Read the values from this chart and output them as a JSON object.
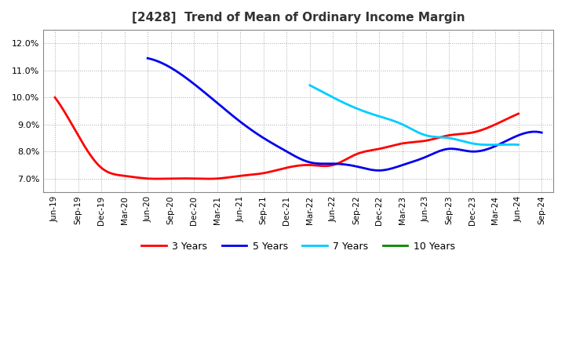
{
  "title": "[2428]  Trend of Mean of Ordinary Income Margin",
  "background_color": "#ffffff",
  "grid_color": "#aaaaaa",
  "x_labels": [
    "Jun-19",
    "Sep-19",
    "Dec-19",
    "Mar-20",
    "Jun-20",
    "Sep-20",
    "Dec-20",
    "Mar-21",
    "Jun-21",
    "Sep-21",
    "Dec-21",
    "Mar-22",
    "Jun-22",
    "Sep-22",
    "Dec-22",
    "Mar-23",
    "Jun-23",
    "Sep-23",
    "Dec-23",
    "Mar-24",
    "Jun-24",
    "Sep-24"
  ],
  "ylim": [
    0.065,
    0.125
  ],
  "yticks": [
    0.07,
    0.08,
    0.09,
    0.1,
    0.11,
    0.12
  ],
  "series_3y_x": [
    0,
    1,
    2,
    3,
    4,
    5,
    6,
    7,
    8,
    9,
    10,
    11,
    12,
    13,
    14,
    15,
    16,
    17,
    18,
    19,
    20
  ],
  "series_3y_y": [
    0.1,
    0.086,
    0.074,
    0.071,
    0.07,
    0.07,
    0.07,
    0.07,
    0.071,
    0.072,
    0.074,
    0.075,
    0.075,
    0.079,
    0.081,
    0.083,
    0.084,
    0.086,
    0.087,
    0.09,
    0.094
  ],
  "series_5y_x": [
    4,
    5,
    6,
    7,
    8,
    9,
    10,
    11,
    12,
    13,
    14,
    15,
    16,
    17,
    18,
    19,
    20,
    21
  ],
  "series_5y_y": [
    0.1145,
    0.111,
    0.105,
    0.098,
    0.091,
    0.085,
    0.08,
    0.076,
    0.0755,
    0.0745,
    0.073,
    0.075,
    0.078,
    0.081,
    0.08,
    0.082,
    0.086,
    0.087
  ],
  "series_7y_x": [
    11,
    12,
    13,
    14,
    15,
    16,
    17,
    18,
    19,
    20
  ],
  "series_7y_y": [
    0.1045,
    0.1,
    0.096,
    0.093,
    0.09,
    0.086,
    0.085,
    0.083,
    0.0825,
    0.0825
  ],
  "series_10y_x": [],
  "series_10y_y": [],
  "color_3y": "#ff0000",
  "color_5y": "#0000ee",
  "color_7y": "#00ccff",
  "color_10y": "#008800",
  "line_width": 2.0
}
